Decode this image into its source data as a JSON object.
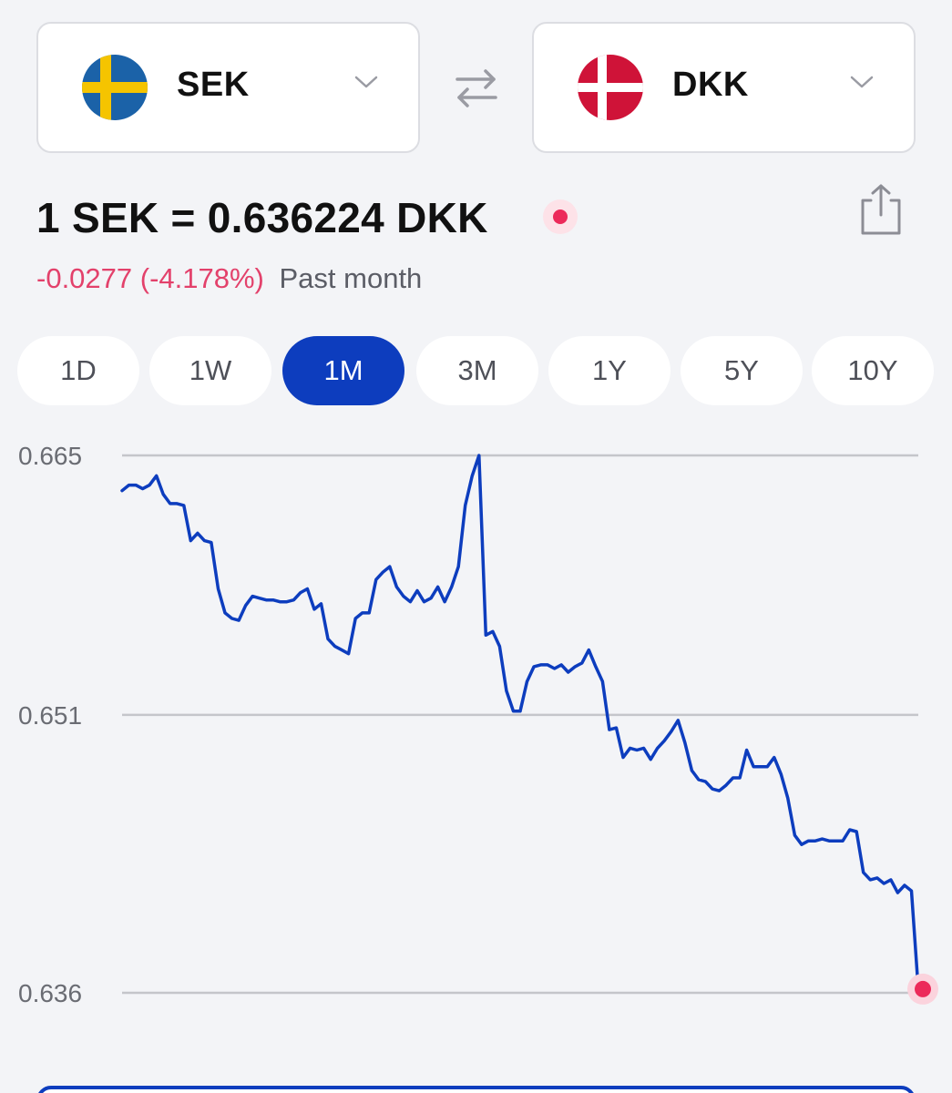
{
  "from_currency": {
    "code": "SEK",
    "flag": "sweden-flag"
  },
  "to_currency": {
    "code": "DKK",
    "flag": "denmark-flag"
  },
  "rate": {
    "text": "1 SEK = 0.636224 DKK"
  },
  "change": {
    "value": "-0.0277",
    "percent": "(-4.178%)",
    "period": "Past month"
  },
  "tabs": [
    {
      "label": "1D",
      "active": false
    },
    {
      "label": "1W",
      "active": false
    },
    {
      "label": "1M",
      "active": true
    },
    {
      "label": "3M",
      "active": false
    },
    {
      "label": "1Y",
      "active": false
    },
    {
      "label": "5Y",
      "active": false
    },
    {
      "label": "10Y",
      "active": false
    }
  ],
  "colors": {
    "accent": "#0d3dbe",
    "negative": "#e3416b",
    "line": "#0d3dbe",
    "marker": "#ec2a5a",
    "gridline": "#c4c5ca"
  },
  "chart_data": {
    "type": "line",
    "y_ticks": [
      "0.665",
      "0.651",
      "0.636"
    ],
    "ylim": [
      0.636,
      0.665
    ],
    "grid": true,
    "series": [
      {
        "values": [
          0.6631,
          0.6634,
          0.6634,
          0.6632,
          0.6634,
          0.6639,
          0.6629,
          0.6624,
          0.6624,
          0.6623,
          0.6604,
          0.6608,
          0.6604,
          0.6603,
          0.6578,
          0.6565,
          0.6562,
          0.6561,
          0.6569,
          0.6574,
          0.6573,
          0.6572,
          0.6572,
          0.6571,
          0.6571,
          0.6572,
          0.6576,
          0.6578,
          0.6567,
          0.657,
          0.6551,
          0.6547,
          0.6545,
          0.6543,
          0.6562,
          0.6565,
          0.6565,
          0.6583,
          0.6587,
          0.659,
          0.6579,
          0.6574,
          0.6571,
          0.6577,
          0.6571,
          0.6573,
          0.6579,
          0.6571,
          0.6579,
          0.659,
          0.6623,
          0.6639,
          0.665,
          0.6553,
          0.6555,
          0.6547,
          0.6523,
          0.6512,
          0.6512,
          0.6528,
          0.6536,
          0.6537,
          0.6537,
          0.6535,
          0.6537,
          0.6533,
          0.6536,
          0.6538,
          0.6545,
          0.6536,
          0.6528,
          0.6502,
          0.6503,
          0.6487,
          0.6492,
          0.6491,
          0.6492,
          0.6486,
          0.6492,
          0.6496,
          0.6501,
          0.6507,
          0.6495,
          0.648,
          0.6475,
          0.6474,
          0.647,
          0.6469,
          0.6472,
          0.6476,
          0.6476,
          0.6491,
          0.6482,
          0.6482,
          0.6482,
          0.6487,
          0.6478,
          0.6465,
          0.6445,
          0.644,
          0.6442,
          0.6442,
          0.6443,
          0.6442,
          0.6442,
          0.6442,
          0.6448,
          0.6447,
          0.6425,
          0.6421,
          0.6422,
          0.6419,
          0.6421,
          0.6414,
          0.6418,
          0.6415,
          0.6362
        ]
      }
    ]
  }
}
